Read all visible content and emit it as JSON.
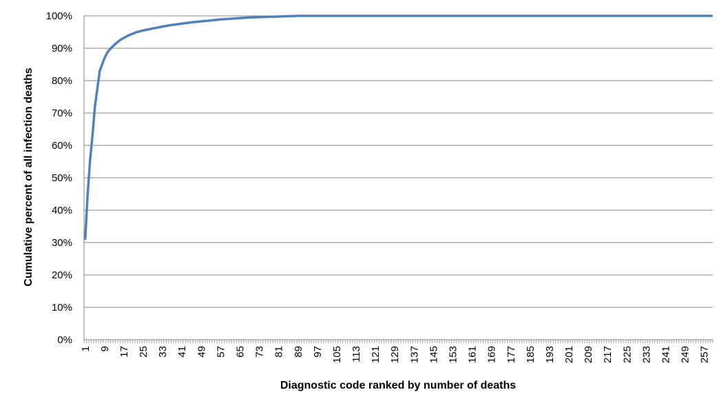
{
  "chart_data": {
    "type": "line",
    "title": "",
    "xlabel": "Diagnostic code ranked by number of deaths",
    "ylabel": "Cumulative percent of all infection deaths",
    "x_range": [
      1,
      260
    ],
    "ylim": [
      0,
      100
    ],
    "y_ticks": [
      "0%",
      "10%",
      "20%",
      "30%",
      "40%",
      "50%",
      "60%",
      "70%",
      "80%",
      "90%",
      "100%"
    ],
    "y_tick_values": [
      0,
      10,
      20,
      30,
      40,
      50,
      60,
      70,
      80,
      90,
      100
    ],
    "x_tick_labels": [
      "1",
      "9",
      "17",
      "25",
      "33",
      "41",
      "49",
      "57",
      "65",
      "73",
      "81",
      "89",
      "97",
      "105",
      "113",
      "121",
      "129",
      "137",
      "145",
      "153",
      "161",
      "169",
      "177",
      "185",
      "193",
      "201",
      "209",
      "217",
      "225",
      "233",
      "241",
      "249",
      "257"
    ],
    "x_tick_values": [
      1,
      9,
      17,
      25,
      33,
      41,
      49,
      57,
      65,
      73,
      81,
      89,
      97,
      105,
      113,
      121,
      129,
      137,
      145,
      153,
      161,
      169,
      177,
      185,
      193,
      201,
      209,
      217,
      225,
      233,
      241,
      249,
      257
    ],
    "grid": "horizontal",
    "legend": "none",
    "series": [
      {
        "color": "#4F81BD",
        "points": [
          [
            1,
            31.2
          ],
          [
            2,
            45.0
          ],
          [
            3,
            55.5
          ],
          [
            4,
            63.0
          ],
          [
            5,
            72.0
          ],
          [
            6,
            77.5
          ],
          [
            7,
            83.0
          ],
          [
            8,
            85.0
          ],
          [
            9,
            87.0
          ],
          [
            10,
            88.5
          ],
          [
            11,
            89.5
          ],
          [
            12,
            90.3
          ],
          [
            13,
            91.0
          ],
          [
            14,
            91.7
          ],
          [
            15,
            92.3
          ],
          [
            16,
            92.8
          ],
          [
            17,
            93.2
          ],
          [
            18,
            93.6
          ],
          [
            19,
            94.0
          ],
          [
            20,
            94.3
          ],
          [
            21,
            94.6
          ],
          [
            22,
            94.9
          ],
          [
            23,
            95.1
          ],
          [
            24,
            95.3
          ],
          [
            25,
            95.5
          ],
          [
            27,
            95.8
          ],
          [
            29,
            96.1
          ],
          [
            31,
            96.4
          ],
          [
            33,
            96.7
          ],
          [
            36,
            97.1
          ],
          [
            41,
            97.6
          ],
          [
            45,
            98.0
          ],
          [
            49,
            98.3
          ],
          [
            53,
            98.6
          ],
          [
            57,
            98.9
          ],
          [
            61,
            99.1
          ],
          [
            65,
            99.3
          ],
          [
            69,
            99.5
          ],
          [
            73,
            99.6
          ],
          [
            77,
            99.7
          ],
          [
            81,
            99.8
          ],
          [
            85,
            99.9
          ],
          [
            89,
            100
          ],
          [
            100,
            100
          ],
          [
            150,
            100
          ],
          [
            200,
            100
          ],
          [
            260,
            100
          ]
        ]
      }
    ]
  }
}
